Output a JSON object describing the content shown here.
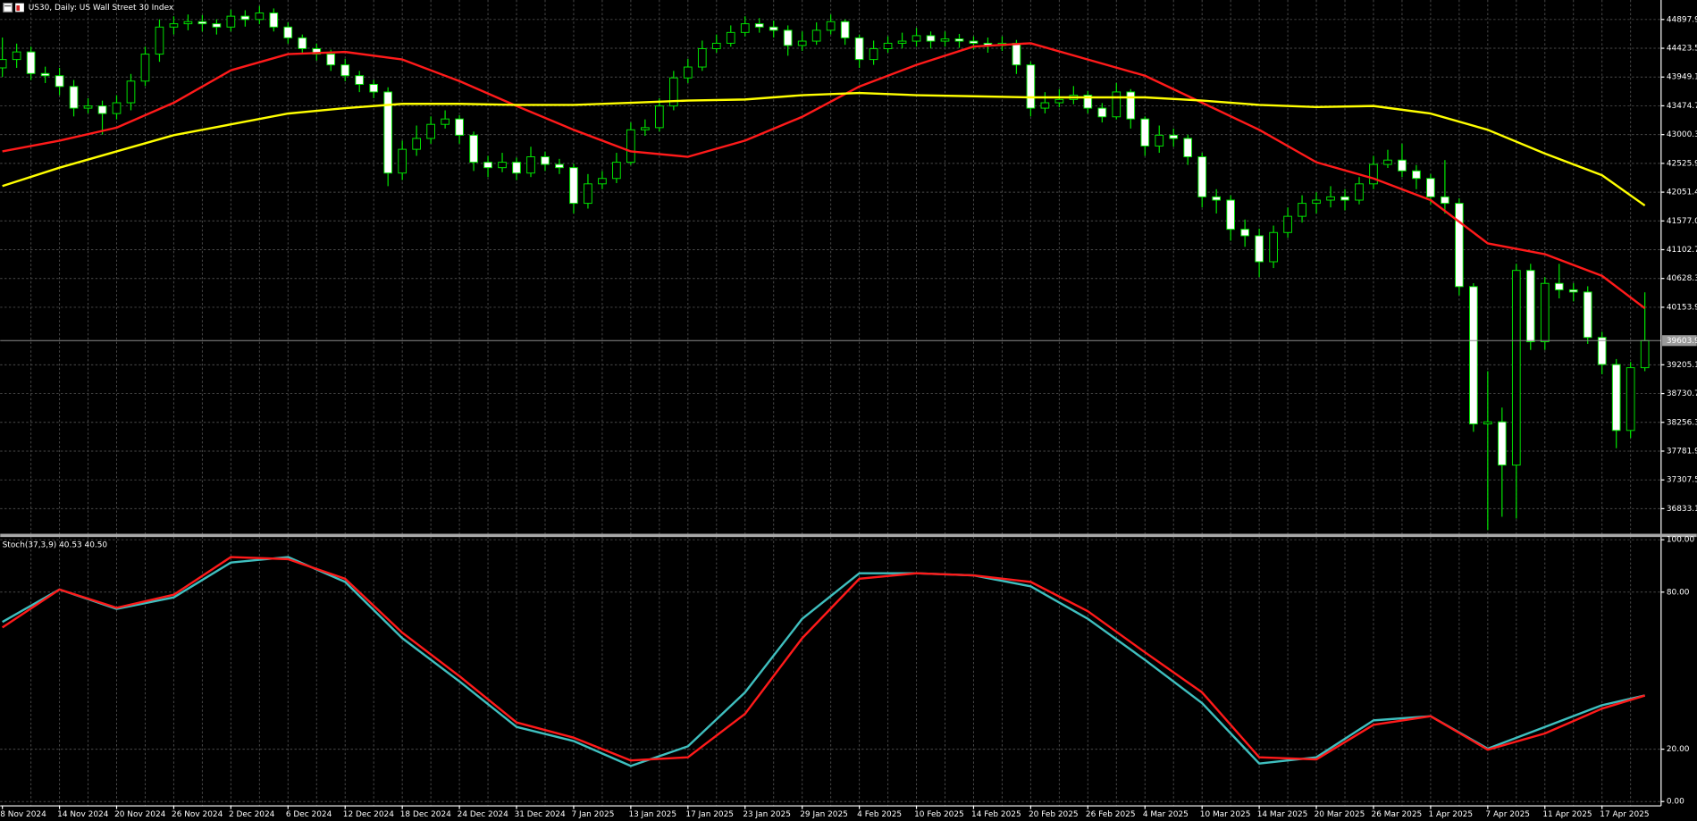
{
  "chart_data": [
    {
      "type": "candlestick",
      "title": "US30, Daily:  US Wall Street 30 Index",
      "categories": [
        "8 Nov 2024",
        null,
        null,
        null,
        "14 Nov 2024",
        null,
        null,
        null,
        "20 Nov 2024",
        null,
        null,
        null,
        "26 Nov 2024",
        null,
        null,
        null,
        "2 Dec 2024",
        null,
        null,
        null,
        "6 Dec 2024",
        null,
        null,
        null,
        "12 Dec 2024",
        null,
        null,
        null,
        "18 Dec 2024",
        null,
        null,
        null,
        "24 Dec 2024",
        null,
        null,
        null,
        "31 Dec 2024",
        null,
        null,
        null,
        "7 Jan 2025",
        null,
        null,
        null,
        "13 Jan 2025",
        null,
        null,
        null,
        "17 Jan 2025",
        null,
        null,
        null,
        "23 Jan 2025",
        null,
        null,
        null,
        "29 Jan 2025",
        null,
        null,
        null,
        "4 Feb 2025",
        null,
        null,
        null,
        "10 Feb 2025",
        null,
        null,
        null,
        "14 Feb 2025",
        null,
        null,
        null,
        "20 Feb 2025",
        null,
        null,
        null,
        "26 Feb 2025",
        null,
        null,
        null,
        "4 Mar 2025",
        null,
        null,
        null,
        "10 Mar 2025",
        null,
        null,
        null,
        "14 Mar 2025",
        null,
        null,
        null,
        "20 Mar 2025",
        null,
        null,
        null,
        "26 Mar 2025",
        null,
        null,
        null,
        "1 Apr 2025",
        null,
        null,
        null,
        "7 Apr 2025",
        null,
        null,
        null,
        "11 Apr 2025",
        null,
        null,
        null,
        "17 Apr 2025",
        null,
        null,
        null
      ],
      "open": [
        44100,
        44238,
        44363,
        44007,
        43971,
        43793,
        43436,
        43472,
        43347,
        43525,
        43882,
        44327,
        44773,
        44827,
        44862,
        44827,
        44773,
        44952,
        44898,
        45005,
        44773,
        44595,
        44417,
        44327,
        44149,
        43971,
        43828,
        43703,
        42366,
        42758,
        42937,
        43169,
        43258,
        42990,
        42544,
        42455,
        42544,
        42366,
        42634,
        42509,
        42455,
        41867,
        42188,
        42277,
        42544,
        43079,
        43115,
        43472,
        43935,
        44114,
        44417,
        44506,
        44684,
        44827,
        44773,
        44720,
        44470,
        44541,
        44720,
        44862,
        44595,
        44238,
        44417,
        44506,
        44541,
        44631,
        44541,
        44577,
        44541,
        44506,
        44470,
        44506,
        44149,
        43436,
        43525,
        43579,
        43650,
        43436,
        43293,
        43703,
        43258,
        42812,
        42990,
        42937,
        42634,
        41974,
        41920,
        41439,
        41332,
        40904,
        41386,
        41653,
        41867,
        41920,
        41974,
        41920,
        42188,
        42509,
        42580,
        42402,
        42277,
        41974,
        41867,
        40494,
        38230,
        38265,
        37552,
        40761,
        39585,
        40547,
        40441,
        40405,
        39656,
        39210,
        38123,
        39157
      ],
      "high": [
        44600,
        44500,
        44450,
        44120,
        44100,
        43900,
        43600,
        43560,
        43650,
        44000,
        44450,
        44900,
        44950,
        44980,
        44970,
        44900,
        45060,
        45050,
        45120,
        45080,
        44850,
        44650,
        44500,
        44400,
        44250,
        44050,
        43900,
        43780,
        42900,
        43150,
        43300,
        43400,
        43320,
        43050,
        42650,
        42700,
        42620,
        42800,
        42720,
        42600,
        42520,
        42350,
        42400,
        42700,
        43200,
        43250,
        43600,
        44050,
        44250,
        44550,
        44650,
        44800,
        44950,
        44920,
        44880,
        44800,
        44700,
        44850,
        44980,
        44900,
        44650,
        44550,
        44620,
        44680,
        44760,
        44700,
        44700,
        44660,
        44620,
        44600,
        44620,
        44560,
        44200,
        43700,
        43750,
        43800,
        43720,
        43520,
        43850,
        43750,
        43300,
        43150,
        43100,
        43000,
        42700,
        42100,
        42000,
        41600,
        41450,
        41500,
        41800,
        42000,
        42050,
        42150,
        42100,
        42300,
        42650,
        42750,
        42850,
        42500,
        42350,
        42580,
        41950,
        40550,
        39100,
        38500,
        40870,
        40870,
        40650,
        40870,
        40550,
        40500,
        39750,
        39300,
        39250,
        40400
      ],
      "low": [
        43950,
        44100,
        43900,
        43850,
        43650,
        43300,
        43350,
        43000,
        43250,
        43400,
        43800,
        44200,
        44650,
        44720,
        44700,
        44650,
        44700,
        44780,
        44820,
        44700,
        44500,
        44320,
        44220,
        44050,
        43880,
        43700,
        43600,
        42150,
        42250,
        42650,
        42850,
        43100,
        42850,
        42400,
        42300,
        42380,
        42250,
        42300,
        42400,
        42350,
        41700,
        41780,
        42100,
        42200,
        42500,
        42980,
        43050,
        43400,
        43850,
        44050,
        44350,
        44450,
        44620,
        44680,
        44600,
        44300,
        44380,
        44480,
        44650,
        44480,
        44100,
        44150,
        44350,
        44420,
        44450,
        44420,
        44450,
        44430,
        44400,
        44350,
        44380,
        44000,
        43300,
        43350,
        43450,
        43500,
        43350,
        43200,
        43250,
        43100,
        42650,
        42700,
        42800,
        42500,
        41800,
        41700,
        41250,
        41150,
        40650,
        40800,
        41300,
        41550,
        41700,
        41800,
        41750,
        41850,
        42100,
        42450,
        42300,
        42100,
        41850,
        41700,
        40350,
        38100,
        36480,
        36700,
        36670,
        39450,
        39450,
        40300,
        40250,
        39550,
        39050,
        37830,
        38000,
        39100
      ],
      "close": [
        44238,
        44363,
        44007,
        43971,
        43793,
        43436,
        43472,
        43347,
        43525,
        43882,
        44327,
        44773,
        44827,
        44862,
        44827,
        44773,
        44952,
        44898,
        45005,
        44773,
        44595,
        44417,
        44327,
        44149,
        43971,
        43828,
        43703,
        42366,
        42758,
        42937,
        43169,
        43258,
        42990,
        42544,
        42455,
        42544,
        42366,
        42634,
        42509,
        42455,
        41867,
        42188,
        42277,
        42544,
        43079,
        43115,
        43472,
        43935,
        44114,
        44417,
        44506,
        44684,
        44827,
        44773,
        44720,
        44470,
        44541,
        44720,
        44862,
        44595,
        44238,
        44417,
        44506,
        44541,
        44631,
        44541,
        44577,
        44541,
        44506,
        44470,
        44506,
        44149,
        43436,
        43525,
        43579,
        43650,
        43436,
        43293,
        43703,
        43258,
        42812,
        42990,
        42937,
        42634,
        41974,
        41920,
        41439,
        41332,
        40904,
        41386,
        41653,
        41867,
        41920,
        41974,
        41920,
        42188,
        42509,
        42580,
        42402,
        42277,
        41974,
        41867,
        40494,
        38230,
        38265,
        37552,
        40761,
        39585,
        40547,
        40441,
        40405,
        39656,
        39210,
        38123,
        39157,
        39603.9
      ],
      "colors": {
        "wick": "#00e600",
        "up": "#000000",
        "down": "#ffffff"
      },
      "series": [
        {
          "color": "#ff1a1a",
          "x": [
            0,
            4,
            8,
            12,
            16,
            20,
            24,
            28,
            32,
            36,
            40,
            44,
            48,
            52,
            56,
            60,
            64,
            68,
            72,
            76,
            80,
            84,
            88,
            92,
            96,
            100,
            104,
            108,
            112,
            115
          ],
          "values": [
            42723,
            42901,
            43115,
            43525,
            44060,
            44327,
            44363,
            44238,
            43882,
            43472,
            43079,
            42723,
            42634,
            42901,
            43293,
            43793,
            44149,
            44452,
            44506,
            44238,
            43971,
            43525,
            43079,
            42544,
            42277,
            41920,
            41207,
            41029,
            40672,
            40137
          ]
        },
        {
          "color": "#ffff00",
          "x": [
            0,
            4,
            8,
            12,
            16,
            20,
            24,
            28,
            32,
            36,
            40,
            44,
            48,
            52,
            56,
            60,
            64,
            68,
            72,
            76,
            80,
            84,
            88,
            92,
            96,
            100,
            104,
            108,
            112,
            115
          ],
          "values": [
            42152,
            42455,
            42723,
            42990,
            43169,
            43347,
            43436,
            43507,
            43507,
            43490,
            43490,
            43525,
            43561,
            43579,
            43650,
            43686,
            43650,
            43632,
            43614,
            43614,
            43614,
            43561,
            43490,
            43454,
            43472,
            43347,
            43079,
            42687,
            42330,
            41831
          ]
        }
      ],
      "current_price": 39603.9,
      "ylim": [
        36410,
        45219
      ],
      "yticks": [
        44897.9,
        44423.5,
        43949.1,
        43474.7,
        43000.3,
        42525.9,
        42051.4,
        {
          "value": 41577.0,
          "label": "41577.0"
        },
        41102.7,
        40628.3,
        40153.9,
        39205.1,
        38730.7,
        38256.3,
        37781.9,
        37307.5,
        36833.1
      ],
      "grid": true
    },
    {
      "type": "line",
      "title": "Stoch(37,3,9) 40.53 40.50",
      "series": [
        {
          "color": "#3fbfbf",
          "x": [
            0,
            4,
            8,
            12,
            16,
            20,
            24,
            28,
            32,
            36,
            40,
            44,
            48,
            52,
            56,
            60,
            64,
            68,
            72,
            76,
            80,
            84,
            88,
            92,
            96,
            100,
            104,
            108,
            112,
            115
          ],
          "values": [
            68.6,
            81,
            73.6,
            78,
            91.3,
            93.4,
            83.9,
            62.4,
            45.9,
            28.5,
            23.1,
            13.6,
            21.1,
            41.7,
            69.8,
            87.2,
            87.2,
            86.4,
            82.2,
            69.8,
            54.1,
            37.6,
            14.5,
            16.9,
            31,
            32.6,
            20.2,
            28.5,
            36.8,
            40.53
          ]
        },
        {
          "color": "#ff1a1a",
          "x": [
            0,
            4,
            8,
            12,
            16,
            20,
            24,
            28,
            32,
            36,
            40,
            44,
            48,
            52,
            56,
            60,
            64,
            68,
            72,
            76,
            80,
            84,
            88,
            92,
            96,
            100,
            104,
            108,
            112,
            115
          ],
          "values": [
            66.5,
            81,
            74,
            79,
            93.4,
            92.6,
            85.1,
            64.5,
            47.9,
            30.2,
            24.4,
            15.7,
            16.9,
            33.5,
            62.4,
            85.1,
            87.2,
            86.4,
            83.9,
            72.7,
            57,
            41.7,
            16.9,
            16.1,
            29.3,
            32.6,
            19.8,
            26,
            35.5,
            40.5
          ]
        }
      ],
      "ylim": [
        0,
        100
      ],
      "yticks": [
        {
          "value": 100,
          "label": "100.00"
        },
        {
          "value": 80,
          "label": "80.00"
        },
        {
          "value": 20,
          "label": "20.00"
        },
        {
          "value": 0,
          "label": "0.00"
        }
      ],
      "grid": true
    }
  ]
}
